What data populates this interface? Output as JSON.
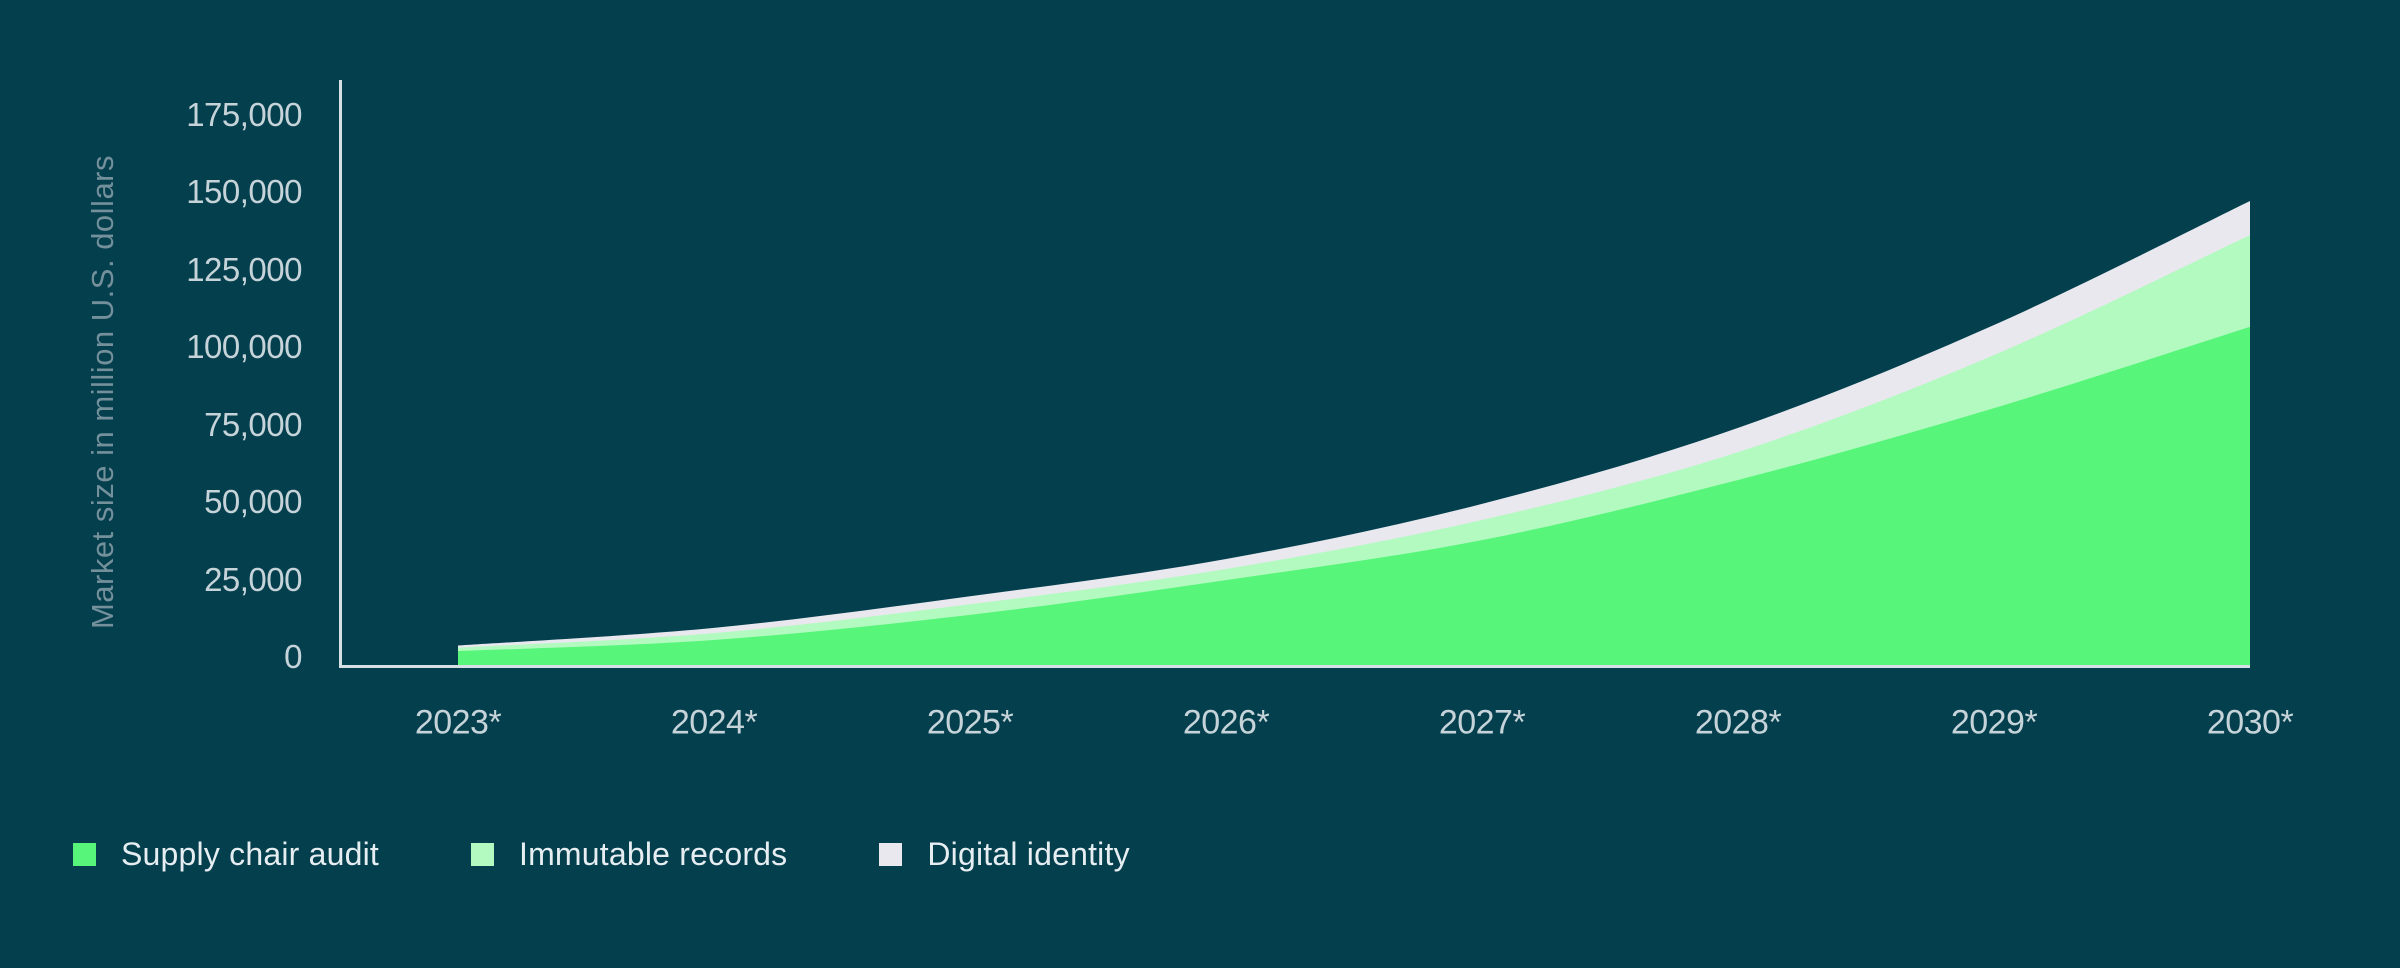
{
  "chart_data": {
    "type": "area",
    "stacked": true,
    "title": "",
    "xlabel": "",
    "ylabel": "Market size in million U.S. dollars",
    "categories": [
      "2023*",
      "2024*",
      "2025*",
      "2026*",
      "2027*",
      "2028*",
      "2029*",
      "2030*"
    ],
    "series": [
      {
        "name": "Supply chair audit",
        "color": "#57f57a",
        "values": [
          4800,
          8400,
          16500,
          27700,
          40600,
          60000,
          83200,
          109400
        ]
      },
      {
        "name": "Immutable records",
        "color": "#b2fac0",
        "values": [
          1100,
          2200,
          3400,
          3600,
          6500,
          9000,
          17100,
          29600
        ]
      },
      {
        "name": "Digital identity",
        "color": "#e8e8ee",
        "values": [
          700,
          1700,
          2600,
          3200,
          5200,
          7800,
          9700,
          11000
        ]
      }
    ],
    "stacked_totals": [
      6600,
      12300,
      22500,
      34500,
      52300,
      76800,
      110000,
      150000
    ],
    "ylim": [
      0,
      175000
    ],
    "y_ticks": [
      0,
      25000,
      50000,
      75000,
      100000,
      125000,
      150000,
      175000
    ],
    "y_tick_labels": [
      "0",
      "25,000",
      "50,000",
      "75,000",
      "100,000",
      "125,000",
      "150,000",
      "175,000"
    ],
    "grid": false,
    "legend_position": "bottom-left",
    "colors": {
      "background": "#043f4e",
      "axis_line": "#d6dfe3",
      "tick_text": "#c6d4da",
      "axis_title_text": "#73909b",
      "legend_text": "#e6eef1"
    }
  }
}
